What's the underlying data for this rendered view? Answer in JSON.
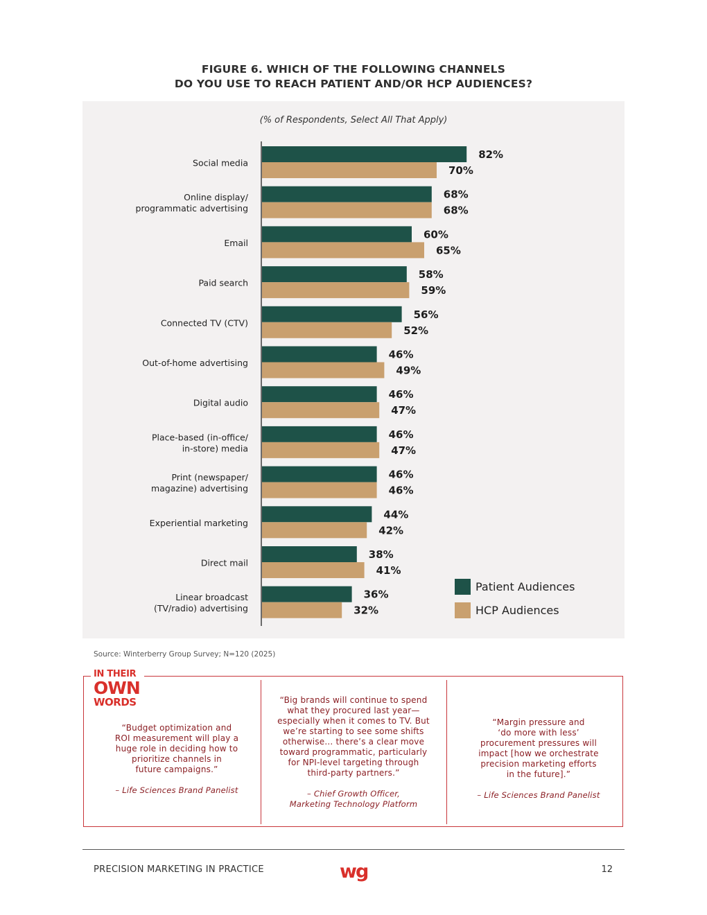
{
  "figure": {
    "title_line1": "FIGURE 6. WHICH OF THE FOLLOWING CHANNELS",
    "title_line2": "DO YOU USE TO REACH PATIENT AND/OR HCP AUDIENCES?",
    "subtitle": "(% of Respondents, Select All That Apply)",
    "source": "Source: Winterberry Group Survey; N=120 (2025)"
  },
  "chart_data": {
    "type": "bar",
    "orientation": "horizontal",
    "categories": [
      [
        "Social media"
      ],
      [
        "Online display/",
        "programmatic advertising"
      ],
      [
        "Email"
      ],
      [
        "Paid search"
      ],
      [
        "Connected TV (CTV)"
      ],
      [
        "Out-of-home advertising"
      ],
      [
        "Digital audio"
      ],
      [
        "Place-based (in-office/",
        "in-store) media"
      ],
      [
        "Print (newspaper/",
        "magazine) advertising"
      ],
      [
        "Experiential marketing"
      ],
      [
        "Direct mail"
      ],
      [
        "Linear broadcast",
        "(TV/radio) advertising"
      ]
    ],
    "series": [
      {
        "name": "Patient Audiences",
        "color": "#1e5248",
        "values": [
          82,
          68,
          60,
          58,
          56,
          46,
          46,
          46,
          46,
          44,
          38,
          36
        ]
      },
      {
        "name": "HCP Audiences",
        "color": "#c9a06f",
        "values": [
          70,
          68,
          65,
          59,
          52,
          49,
          47,
          47,
          46,
          42,
          41,
          32
        ]
      }
    ],
    "value_suffix": "%",
    "xlim": [
      0,
      100
    ],
    "legend_position": "bottom-right",
    "grid": false
  },
  "callout": {
    "logo_line1": "IN THEIR",
    "logo_line2": "OWN",
    "logo_line3": "WORDS",
    "quotes": [
      {
        "text": "“Budget optimization and\nROI measurement will play a\nhuge role in deciding how to\nprioritize channels in\nfuture campaigns.”",
        "attribution": "– Life Sciences Brand Panelist"
      },
      {
        "text": "“Big brands will continue to spend\nwhat they procured last year—\nespecially when it comes to TV. But\nwe’re starting to see some shifts\notherwise... there’s a clear move\ntoward programmatic, particularly\nfor NPI-level targeting through\nthird-party partners.”",
        "attribution": "– Chief Growth Officer,\nMarketing Technology Platform"
      },
      {
        "text": "“Margin pressure and\n‘do more with less’\nprocurement pressures will\nimpact [how we orchestrate\nprecision marketing efforts\nin the future].”",
        "attribution": "– Life Sciences Brand Panelist"
      }
    ]
  },
  "footer": {
    "report_title": "PRECISION MARKETING IN PRACTICE",
    "logo_text": "wg",
    "page_number": "12",
    "logo_color": "#d9302b"
  }
}
